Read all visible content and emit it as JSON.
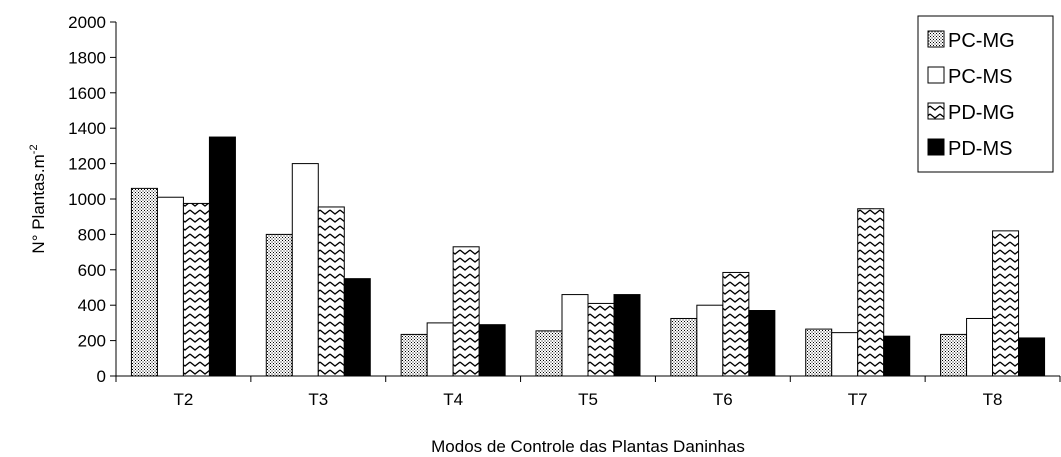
{
  "chart_data": {
    "type": "bar",
    "categories": [
      "T2",
      "T3",
      "T4",
      "T5",
      "T6",
      "T7",
      "T8"
    ],
    "series": [
      {
        "name": "PC-MG",
        "values": [
          1060,
          800,
          235,
          255,
          325,
          265,
          235
        ],
        "pattern": "dots",
        "color": "#000000"
      },
      {
        "name": "PC-MS",
        "values": [
          1010,
          1200,
          300,
          460,
          400,
          245,
          325
        ],
        "pattern": "none",
        "color": "#ffffff"
      },
      {
        "name": "PD-MG",
        "values": [
          975,
          955,
          730,
          410,
          585,
          945,
          820
        ],
        "pattern": "zigzag",
        "color": "#000000"
      },
      {
        "name": "PD-MS",
        "values": [
          1350,
          550,
          290,
          460,
          370,
          225,
          215
        ],
        "pattern": "solid",
        "color": "#000000"
      }
    ],
    "xlabel": "Modos de Controle das Plantas Daninhas",
    "ylabel": "N° Plantas.m",
    "ylabel_sup": "-2",
    "ylim": [
      0,
      2000
    ],
    "yticks": [
      0,
      200,
      400,
      600,
      800,
      1000,
      1200,
      1400,
      1600,
      1800,
      2000
    ],
    "grid": false,
    "legend_position": "top-right"
  }
}
